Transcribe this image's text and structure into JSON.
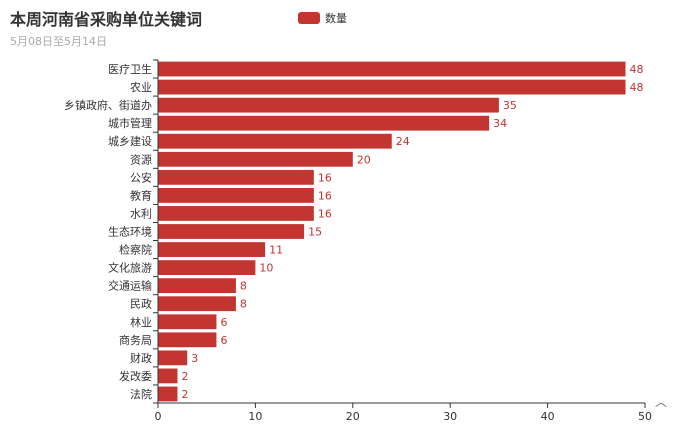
{
  "title": "本周河南省采购单位关键词",
  "subtitle": "5月08日至5月14日",
  "legend": {
    "label": "数量",
    "color": "#c23531"
  },
  "scroll_top_icon": "chevron-up-icon",
  "chart_data": {
    "type": "bar",
    "orientation": "horizontal",
    "categories": [
      "医疗卫生",
      "农业",
      "乡镇政府、街道办",
      "城市管理",
      "城乡建设",
      "资源",
      "公安",
      "教育",
      "水利",
      "生态环境",
      "检察院",
      "文化旅游",
      "交通运输",
      "民政",
      "林业",
      "商务局",
      "财政",
      "发改委",
      "法院"
    ],
    "series": [
      {
        "name": "数量",
        "values": [
          48,
          48,
          35,
          34,
          24,
          20,
          16,
          16,
          16,
          15,
          11,
          10,
          8,
          8,
          6,
          6,
          3,
          2,
          2
        ],
        "color": "#c23531"
      }
    ],
    "xlim": [
      0,
      50
    ],
    "xticks": [
      0,
      10,
      20,
      30,
      40,
      50
    ],
    "title": "本周河南省采购单位关键词",
    "subtitle": "5月08日至5月14日",
    "legend_position": "top",
    "grid": false
  }
}
